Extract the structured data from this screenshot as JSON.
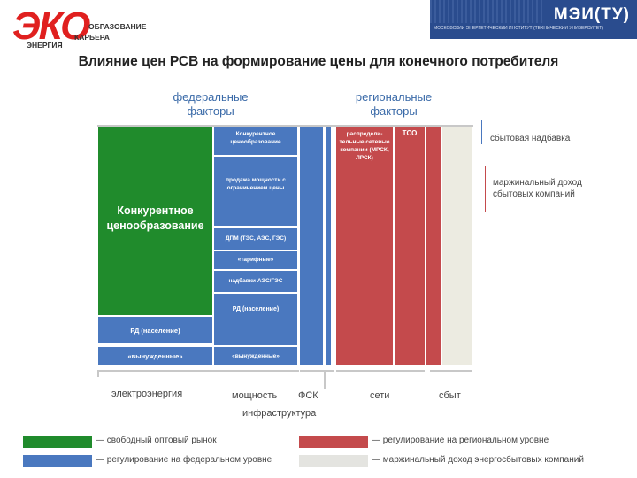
{
  "header": {
    "logo_left_big": "ЭКО",
    "logo_left_lines": [
      "ОБРАЗОВАНИЕ",
      "КАРЬЕРА",
      "ЭНЕРГИЯ"
    ],
    "logo_right_title": "МЭИ(ТУ)",
    "logo_right_subtitle": "МОСКОВСКИЙ ЭНЕРГЕТИЧЕСКИЙ ИНСТИТУТ (ТЕХНИЧЕСКИЙ УНИВЕРСИТЕТ)"
  },
  "title": "Влияние цен РСВ на формирование цены для конечного потребителя",
  "groups": {
    "federal": "федеральные факторы",
    "regional": "региональные факторы"
  },
  "blocks": {
    "competitive_big": "Конкурентное ценообразование",
    "rd_population_energy": "РД (население)",
    "forced_energy": "«вынужденные»",
    "competitive_small": "Конкурентное ценообразование",
    "capacity_limited": "продажа мощности с ограничением цены",
    "dpm": "ДПМ (ТЭС, АЭС, ГЭС)",
    "tariff": "«тарифные»",
    "surcharge": "надбавки АЭС/ГЭС",
    "rd_capacity": "РД (население)",
    "forced_capacity": "«вынужденные»",
    "distribution": "распредели-тельные сетевые компании (МРСК, ЛРСК)",
    "tso": "ТСО"
  },
  "right_labels": {
    "sales_markup": "сбытовая надбавка",
    "marginal_income": "маржинальный доход сбытовых компаний"
  },
  "bottom_labels": {
    "energy": "электроэнергия",
    "capacity": "мощность",
    "fsk": "ФСК",
    "infrastructure": "инфраструктура",
    "networks": "сети",
    "sales": "сбыт"
  },
  "legend": [
    {
      "color": "#208b2c",
      "label": "— свободный оптовый рынок"
    },
    {
      "color": "#4a78bf",
      "label": "— регулирование на федеральном уровне"
    },
    {
      "color": "#c44a4c",
      "label": "— регулирование на региональном уровне"
    },
    {
      "color": "#e4e4e0",
      "label": "— маржинальный доход энергосбытовых компаний"
    }
  ]
}
